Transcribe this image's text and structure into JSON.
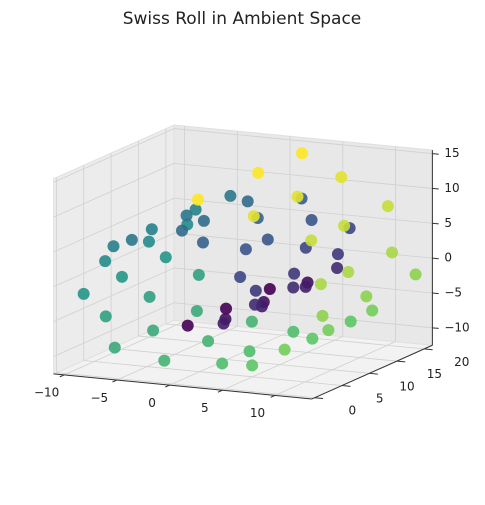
{
  "chart_data": {
    "type": "scatter3d",
    "title": "Swiss Roll in Ambient Space",
    "colormap": "viridis",
    "x": [
      0.42,
      2.44,
      4.34,
      5.76,
      6.36,
      5.91,
      4.38,
      1.87,
      -1.16,
      -4.36,
      -7.14,
      -8.97,
      -9.45,
      -8.39,
      -5.98,
      -2.32,
      2.13,
      6.53,
      10.13,
      12.17,
      12.53,
      10.58,
      6.68,
      1.91,
      0.42,
      2.44,
      4.34,
      5.76,
      6.36,
      5.91,
      4.38,
      1.87,
      -1.16,
      -4.36,
      -7.14,
      -8.97,
      -9.45,
      -8.39,
      -5.98,
      -2.32,
      2.13,
      6.53,
      10.13,
      12.17,
      12.53,
      10.58,
      6.68,
      1.91,
      0.42,
      2.44,
      4.34,
      5.76,
      6.36,
      5.91,
      4.38,
      1.87,
      -1.16,
      -4.36,
      -7.14,
      -8.97,
      -9.45,
      -8.39,
      -5.98,
      -2.32,
      2.13,
      6.53,
      10.13,
      12.17,
      12.53,
      10.58,
      6.68,
      1.91
    ],
    "y": [
      2,
      5,
      1,
      4,
      3,
      1,
      5,
      2,
      4,
      1,
      3,
      5,
      2,
      4,
      1,
      3,
      5,
      2,
      1,
      4,
      3,
      5,
      2,
      1,
      9,
      12,
      8,
      11,
      10,
      13,
      9,
      12,
      8,
      11,
      10,
      13,
      9,
      12,
      8,
      11,
      10,
      13,
      9,
      12,
      8,
      11,
      10,
      12,
      17,
      20,
      16,
      19,
      18,
      21,
      17,
      20,
      16,
      19,
      18,
      20,
      17,
      21,
      16,
      19,
      18,
      20,
      17,
      21,
      16,
      19,
      18,
      20
    ],
    "z": [
      -4.78,
      -4.59,
      -3.54,
      -1.68,
      0.75,
      3.36,
      5.71,
      7.37,
      7.92,
      7.18,
      5.15,
      2.05,
      -1.67,
      -5.44,
      -8.51,
      -10.55,
      -11.0,
      -9.59,
      -6.44,
      -2.36,
      2.6,
      7.9,
      11.85,
      13.87,
      -4.78,
      -4.59,
      -3.54,
      -1.68,
      0.75,
      3.36,
      5.71,
      7.37,
      7.92,
      7.18,
      5.15,
      2.05,
      -1.67,
      -5.44,
      -8.51,
      -10.55,
      -11.0,
      -9.59,
      -6.44,
      -2.36,
      2.6,
      7.9,
      11.85,
      13.87,
      -4.78,
      -4.59,
      -3.54,
      -1.68,
      0.75,
      3.36,
      5.71,
      7.37,
      7.92,
      7.18,
      5.15,
      2.05,
      -1.67,
      -5.44,
      -8.51,
      -10.55,
      -11.0,
      -9.59,
      -6.44,
      -2.36,
      2.6,
      7.9,
      11.85,
      13.87
    ],
    "c": [
      4.8,
      5.2,
      5.6,
      6.0,
      6.4,
      6.8,
      7.2,
      7.6,
      8.0,
      8.4,
      8.8,
      9.2,
      9.6,
      10.0,
      10.4,
      10.8,
      11.2,
      11.6,
      12.0,
      12.4,
      12.8,
      13.2,
      13.6,
      14.0,
      4.8,
      5.2,
      5.6,
      6.0,
      6.4,
      6.8,
      7.2,
      7.6,
      8.0,
      8.4,
      8.8,
      9.2,
      9.6,
      10.0,
      10.4,
      10.8,
      11.2,
      11.6,
      12.0,
      12.4,
      12.8,
      13.2,
      13.6,
      14.0,
      4.8,
      5.2,
      5.6,
      6.0,
      6.4,
      6.8,
      7.2,
      7.6,
      8.0,
      8.4,
      8.8,
      9.2,
      9.6,
      10.0,
      10.4,
      10.8,
      11.2,
      11.6,
      12.0,
      12.4,
      12.8,
      13.2,
      13.6,
      14.0
    ],
    "xlim": [
      -11,
      13.5
    ],
    "ylim": [
      -0.5,
      21.5
    ],
    "zlim": [
      -12.5,
      15.5
    ],
    "xticks": [
      {
        "value": -10,
        "label": "−10"
      },
      {
        "value": -5,
        "label": "−5"
      },
      0,
      5,
      10
    ],
    "yticks": [
      0,
      5,
      10,
      15,
      20
    ],
    "zticks": [
      {
        "value": -10,
        "label": "−10"
      },
      {
        "value": -5,
        "label": "−5"
      },
      0,
      5,
      10,
      15
    ],
    "grid": true
  }
}
